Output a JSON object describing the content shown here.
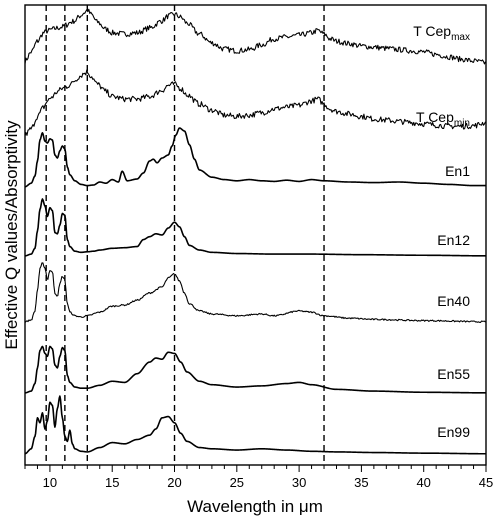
{
  "chart_data": {
    "type": "line",
    "xlabel": "Wavelength in μm",
    "ylabel": "Effective Q values/Absorptivity",
    "xlim": [
      8,
      45
    ],
    "x_ticks": [
      10,
      15,
      20,
      25,
      30,
      35,
      40,
      45
    ],
    "grid": false,
    "reference_lines_x": [
      9.7,
      11.2,
      13.0,
      20.0,
      32.0
    ],
    "series": [
      {
        "name": "T Cep",
        "name_sub": "max",
        "noisy": true,
        "x": [
          8.0,
          8.5,
          9.0,
          9.5,
          9.8,
          10.2,
          10.6,
          11.0,
          11.3,
          11.7,
          12.0,
          12.4,
          12.8,
          13.0,
          13.3,
          13.8,
          14.5,
          15.0,
          16.0,
          17.0,
          18.0,
          19.0,
          19.5,
          20.0,
          20.5,
          21.0,
          22.0,
          23.0,
          24.0,
          25.0,
          26.0,
          27.0,
          28.0,
          29.0,
          30.0,
          31.0,
          31.5,
          32.0,
          32.5,
          33.0,
          34.0,
          35.0,
          36.0,
          37.0,
          38.0,
          39.0,
          40.0,
          41.0,
          42.0,
          43.0,
          44.0,
          45.0
        ],
        "y": [
          0.15,
          0.3,
          0.48,
          0.62,
          0.65,
          0.68,
          0.7,
          0.72,
          0.75,
          0.8,
          0.82,
          0.9,
          0.96,
          1.0,
          0.93,
          0.8,
          0.68,
          0.62,
          0.6,
          0.62,
          0.7,
          0.82,
          0.9,
          0.93,
          0.88,
          0.78,
          0.6,
          0.45,
          0.35,
          0.32,
          0.34,
          0.42,
          0.52,
          0.55,
          0.58,
          0.62,
          0.66,
          0.6,
          0.52,
          0.48,
          0.44,
          0.4,
          0.38,
          0.36,
          0.34,
          0.32,
          0.3,
          0.26,
          0.22,
          0.18,
          0.15,
          0.12
        ]
      },
      {
        "name": "T Cep",
        "name_sub": "min",
        "noisy": true,
        "x": [
          8.0,
          8.5,
          9.0,
          9.5,
          9.8,
          10.2,
          10.6,
          11.0,
          11.3,
          11.7,
          12.0,
          12.4,
          12.8,
          13.0,
          13.3,
          13.8,
          14.5,
          15.0,
          16.0,
          17.0,
          18.0,
          19.0,
          19.5,
          20.0,
          20.5,
          21.0,
          22.0,
          23.0,
          24.0,
          25.0,
          26.0,
          27.0,
          28.0,
          29.0,
          30.0,
          31.0,
          31.5,
          32.0,
          32.5,
          33.0,
          34.0,
          35.0,
          36.0,
          37.0,
          38.0,
          39.0,
          40.0,
          41.0,
          42.0,
          43.0,
          44.0,
          45.0
        ],
        "y": [
          0.0,
          0.1,
          0.3,
          0.45,
          0.55,
          0.62,
          0.7,
          0.75,
          0.78,
          0.82,
          0.88,
          0.95,
          1.0,
          1.02,
          0.95,
          0.82,
          0.7,
          0.62,
          0.58,
          0.58,
          0.62,
          0.72,
          0.8,
          0.82,
          0.75,
          0.65,
          0.5,
          0.4,
          0.32,
          0.3,
          0.32,
          0.36,
          0.42,
          0.45,
          0.48,
          0.55,
          0.58,
          0.5,
          0.42,
          0.38,
          0.34,
          0.3,
          0.26,
          0.24,
          0.22,
          0.2,
          0.18,
          0.16,
          0.14,
          0.14,
          0.15,
          0.2
        ]
      },
      {
        "name": "En1",
        "x": [
          8.0,
          8.5,
          8.8,
          9.0,
          9.2,
          9.4,
          9.6,
          9.8,
          10.0,
          10.2,
          10.4,
          10.6,
          10.8,
          11.0,
          11.2,
          11.4,
          11.6,
          12.0,
          12.5,
          13.0,
          13.5,
          14.0,
          14.5,
          15.0,
          15.5,
          15.8,
          16.2,
          17.0,
          17.5,
          18.0,
          18.3,
          18.6,
          19.0,
          19.5,
          19.8,
          20.1,
          20.4,
          20.8,
          21.2,
          21.6,
          22.0,
          23.0,
          24.0,
          25.0,
          26.0,
          27.0,
          28.0,
          29.0,
          30.0,
          31.0,
          32.0,
          34.0,
          36.0,
          38.0,
          40.0,
          42.0,
          44.0,
          45.0
        ],
        "y": [
          0.02,
          0.08,
          0.2,
          0.45,
          0.8,
          0.92,
          0.78,
          0.75,
          0.82,
          0.8,
          0.55,
          0.5,
          0.62,
          0.7,
          0.65,
          0.35,
          0.22,
          0.12,
          0.06,
          0.04,
          0.05,
          0.1,
          0.08,
          0.14,
          0.1,
          0.28,
          0.12,
          0.15,
          0.25,
          0.45,
          0.48,
          0.42,
          0.5,
          0.55,
          0.7,
          0.88,
          1.0,
          0.95,
          0.72,
          0.48,
          0.3,
          0.18,
          0.14,
          0.12,
          0.14,
          0.12,
          0.11,
          0.13,
          0.11,
          0.14,
          0.12,
          0.1,
          0.09,
          0.1,
          0.08,
          0.06,
          0.04,
          0.04
        ]
      },
      {
        "name": "En12",
        "x": [
          8.0,
          8.5,
          8.8,
          9.0,
          9.2,
          9.4,
          9.6,
          9.8,
          10.0,
          10.2,
          10.4,
          10.6,
          10.8,
          11.0,
          11.2,
          11.4,
          11.6,
          12.0,
          12.5,
          13.0,
          13.5,
          14.0,
          15.0,
          16.0,
          17.0,
          17.5,
          18.0,
          18.5,
          19.0,
          19.5,
          20.0,
          20.4,
          20.8,
          21.2,
          22.0,
          23.0,
          25.0,
          28.0,
          31.0,
          35.0,
          40.0,
          45.0
        ],
        "y": [
          0.02,
          0.05,
          0.15,
          0.45,
          0.82,
          1.0,
          0.88,
          0.7,
          0.85,
          0.8,
          0.42,
          0.4,
          0.55,
          0.75,
          0.72,
          0.3,
          0.18,
          0.1,
          0.08,
          0.09,
          0.1,
          0.12,
          0.15,
          0.16,
          0.18,
          0.3,
          0.35,
          0.4,
          0.38,
          0.5,
          0.6,
          0.52,
          0.35,
          0.2,
          0.12,
          0.08,
          0.06,
          0.05,
          0.05,
          0.04,
          0.03,
          0.02
        ]
      },
      {
        "name": "En40",
        "noisy": true,
        "x": [
          8.0,
          8.5,
          8.8,
          9.0,
          9.2,
          9.4,
          9.6,
          9.8,
          10.0,
          10.2,
          10.4,
          10.6,
          10.8,
          11.0,
          11.2,
          11.4,
          11.6,
          12.0,
          12.5,
          13.0,
          14.0,
          15.0,
          16.0,
          17.0,
          18.0,
          19.0,
          19.5,
          20.0,
          20.4,
          20.8,
          21.2,
          22.0,
          23.0,
          25.0,
          27.0,
          28.0,
          30.0,
          31.0,
          32.0,
          34.0,
          36.0,
          40.0,
          45.0
        ],
        "y": [
          0.02,
          0.05,
          0.2,
          0.55,
          0.9,
          1.0,
          0.92,
          0.72,
          0.88,
          0.85,
          0.5,
          0.45,
          0.65,
          0.78,
          0.72,
          0.32,
          0.18,
          0.12,
          0.1,
          0.12,
          0.18,
          0.28,
          0.3,
          0.38,
          0.5,
          0.6,
          0.75,
          0.82,
          0.7,
          0.5,
          0.32,
          0.2,
          0.15,
          0.12,
          0.15,
          0.12,
          0.2,
          0.18,
          0.12,
          0.08,
          0.06,
          0.04,
          0.02
        ]
      },
      {
        "name": "En55",
        "x": [
          8.0,
          8.5,
          8.8,
          9.0,
          9.2,
          9.4,
          9.6,
          9.8,
          10.0,
          10.2,
          10.4,
          10.6,
          10.8,
          11.0,
          11.2,
          11.4,
          11.6,
          12.0,
          12.5,
          13.0,
          14.0,
          15.0,
          16.0,
          17.0,
          18.0,
          18.5,
          19.0,
          19.5,
          20.0,
          20.5,
          21.0,
          22.0,
          23.0,
          25.0,
          27.0,
          29.0,
          30.0,
          31.0,
          33.0,
          36.0,
          40.0,
          45.0
        ],
        "y": [
          0.02,
          0.05,
          0.18,
          0.45,
          0.75,
          0.82,
          0.7,
          0.65,
          0.82,
          0.78,
          0.5,
          0.45,
          0.65,
          0.8,
          0.75,
          0.32,
          0.2,
          0.12,
          0.1,
          0.1,
          0.15,
          0.22,
          0.2,
          0.35,
          0.55,
          0.62,
          0.6,
          0.72,
          0.7,
          0.55,
          0.38,
          0.22,
          0.16,
          0.12,
          0.14,
          0.18,
          0.2,
          0.16,
          0.08,
          0.05,
          0.03,
          0.02
        ]
      },
      {
        "name": "En99",
        "x": [
          8.0,
          8.5,
          8.8,
          9.0,
          9.2,
          9.4,
          9.6,
          9.8,
          10.0,
          10.2,
          10.4,
          10.6,
          10.8,
          11.0,
          11.2,
          11.4,
          11.6,
          11.8,
          12.0,
          12.5,
          13.0,
          14.0,
          15.0,
          16.0,
          17.0,
          18.0,
          18.5,
          19.0,
          19.5,
          20.0,
          20.5,
          21.0,
          22.0,
          23.0,
          25.0,
          27.0,
          29.0,
          31.0,
          33.0,
          36.0,
          40.0,
          45.0
        ],
        "y": [
          0.02,
          0.1,
          0.3,
          0.6,
          0.52,
          0.68,
          0.42,
          0.55,
          0.85,
          0.8,
          0.45,
          0.75,
          0.95,
          0.6,
          0.3,
          0.22,
          0.4,
          0.18,
          0.1,
          0.06,
          0.05,
          0.12,
          0.2,
          0.18,
          0.25,
          0.32,
          0.42,
          0.6,
          0.62,
          0.52,
          0.35,
          0.22,
          0.12,
          0.1,
          0.08,
          0.1,
          0.08,
          0.06,
          0.05,
          0.04,
          0.03,
          0.02
        ]
      }
    ]
  }
}
